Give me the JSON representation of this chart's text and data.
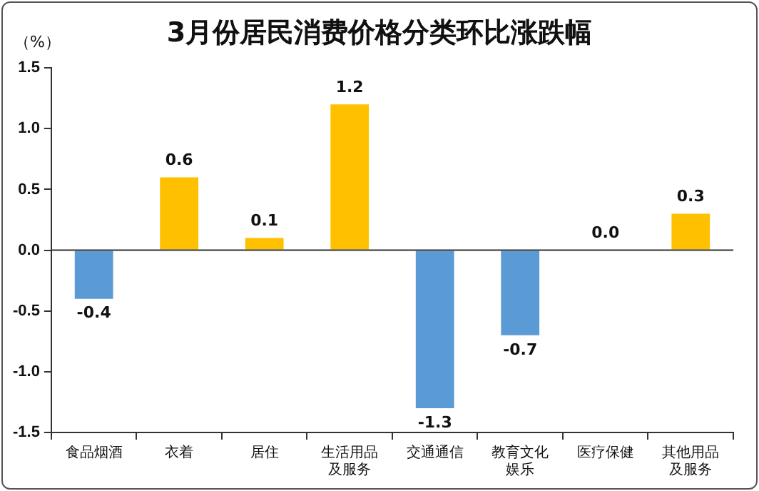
{
  "chart_data": {
    "type": "bar",
    "title": "3月份居民消费价格分类环比涨跌幅",
    "ylabel": "（%）",
    "categories": [
      "食品烟酒",
      "衣着",
      "居住",
      "生活用品及服务",
      "交通通信",
      "教育文化娱乐",
      "医疗保健",
      "其他用品及服务"
    ],
    "values": [
      -0.4,
      0.6,
      0.1,
      1.2,
      -1.3,
      -0.7,
      0.0,
      0.3
    ],
    "colors": [
      "#5b9bd5",
      "#ffc000",
      "#ffc000",
      "#ffc000",
      "#5b9bd5",
      "#5b9bd5",
      "#ffc000",
      "#ffc000"
    ],
    "ylim": [
      -1.5,
      1.5
    ],
    "yticks": [
      {
        "value": -1.5,
        "label": "-1.5"
      },
      {
        "value": -1,
        "label": "-1.0"
      },
      {
        "value": -0.5,
        "label": "-0.5"
      },
      {
        "value": 0,
        "label": "0.0"
      },
      {
        "value": 0.5,
        "label": "0.5"
      },
      {
        "value": 1,
        "label": "1.0"
      },
      {
        "value": 1.5,
        "label": "1.5"
      }
    ],
    "value_labels": [
      "-0.4",
      "0.6",
      "0.1",
      "1.2",
      "-1.3",
      "-0.7",
      "0.0",
      "0.3"
    ],
    "ref_lines": [
      {
        "axis": "y",
        "value": 0,
        "color": "#333333"
      }
    ],
    "grid": false,
    "legend": false
  }
}
